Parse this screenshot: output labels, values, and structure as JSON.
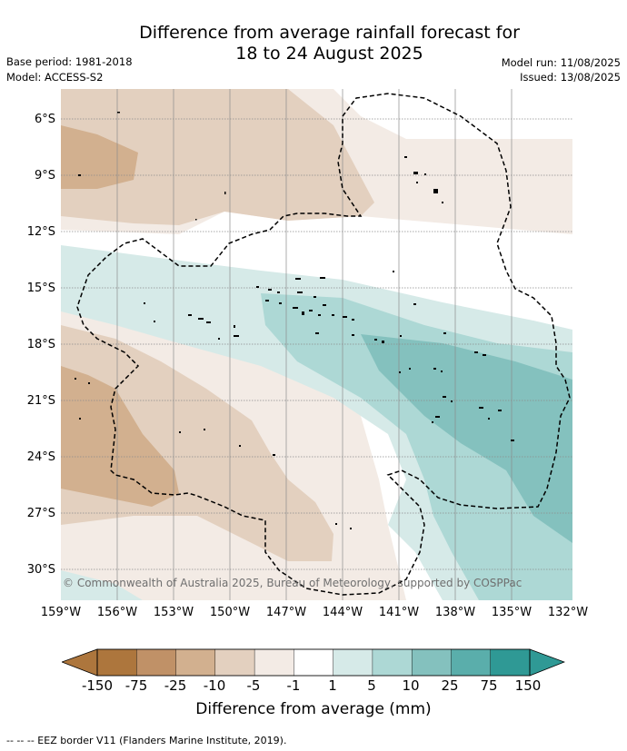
{
  "title_line1": "Difference from average rainfall forecast for",
  "title_line2": "18 to 24 August 2025",
  "meta": {
    "base_period": "Base period: 1981-2018",
    "model": "Model: ACCESS-S2",
    "model_run": "Model run: 11/08/2025",
    "issued": "Issued: 13/08/2025"
  },
  "map": {
    "lat_labels": [
      "6°S",
      "9°S",
      "12°S",
      "15°S",
      "18°S",
      "21°S",
      "24°S",
      "27°S",
      "30°S"
    ],
    "lon_labels": [
      "159°W",
      "156°W",
      "153°W",
      "150°W",
      "147°W",
      "144°W",
      "141°W",
      "138°W",
      "135°W",
      "132°W"
    ],
    "copyright": "© Commonwealth of Australia 2025, Bureau of Meteorology, supported by COSPPac",
    "land_color": "#000000",
    "eez_border_style": "dashed"
  },
  "colorbar": {
    "labels": [
      "-150",
      "-75",
      "-25",
      "-10",
      "-5",
      "-1",
      "1",
      "5",
      "10",
      "25",
      "75",
      "150"
    ],
    "colors": [
      "#ad763d",
      "#c09167",
      "#d2b08f",
      "#e3d0bf",
      "#f3ebe5",
      "#ffffff",
      "#d6eae8",
      "#add8d5",
      "#84c1be",
      "#5aaeab",
      "#2f9995"
    ],
    "extend_low_color": "#ad763d",
    "extend_high_color": "#2f9995",
    "title": "Difference from average (mm)"
  },
  "footer": "--  --  -- EEZ border V11 (Flanders Marine Institute, 2019)."
}
